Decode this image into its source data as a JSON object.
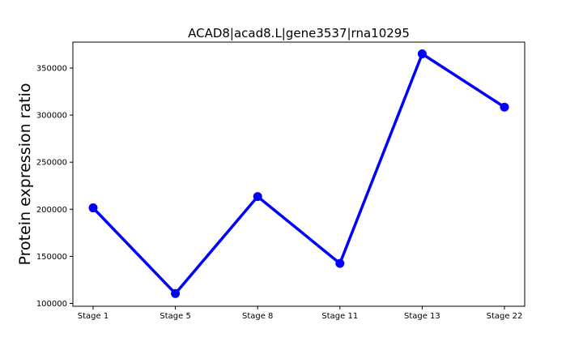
{
  "chart_data": {
    "type": "line",
    "title": "ACAD8|acad8.L|gene3537|rna10295",
    "xlabel": "",
    "ylabel": "Protein expression ratio",
    "categories": [
      "Stage 1",
      "Stage 5",
      "Stage 8",
      "Stage 11",
      "Stage 13",
      "Stage 22"
    ],
    "series": [
      {
        "values": [
          201500,
          110500,
          213500,
          142500,
          365000,
          308500
        ],
        "color": "#0000ff",
        "marker": "circle"
      }
    ],
    "yticks": [
      100000,
      150000,
      200000,
      250000,
      300000,
      350000
    ],
    "ytick_labels": [
      "100000",
      "150000",
      "200000",
      "250000",
      "300000",
      "350000"
    ],
    "ylim": [
      97000,
      377500
    ],
    "grid": false,
    "legend": "none"
  }
}
